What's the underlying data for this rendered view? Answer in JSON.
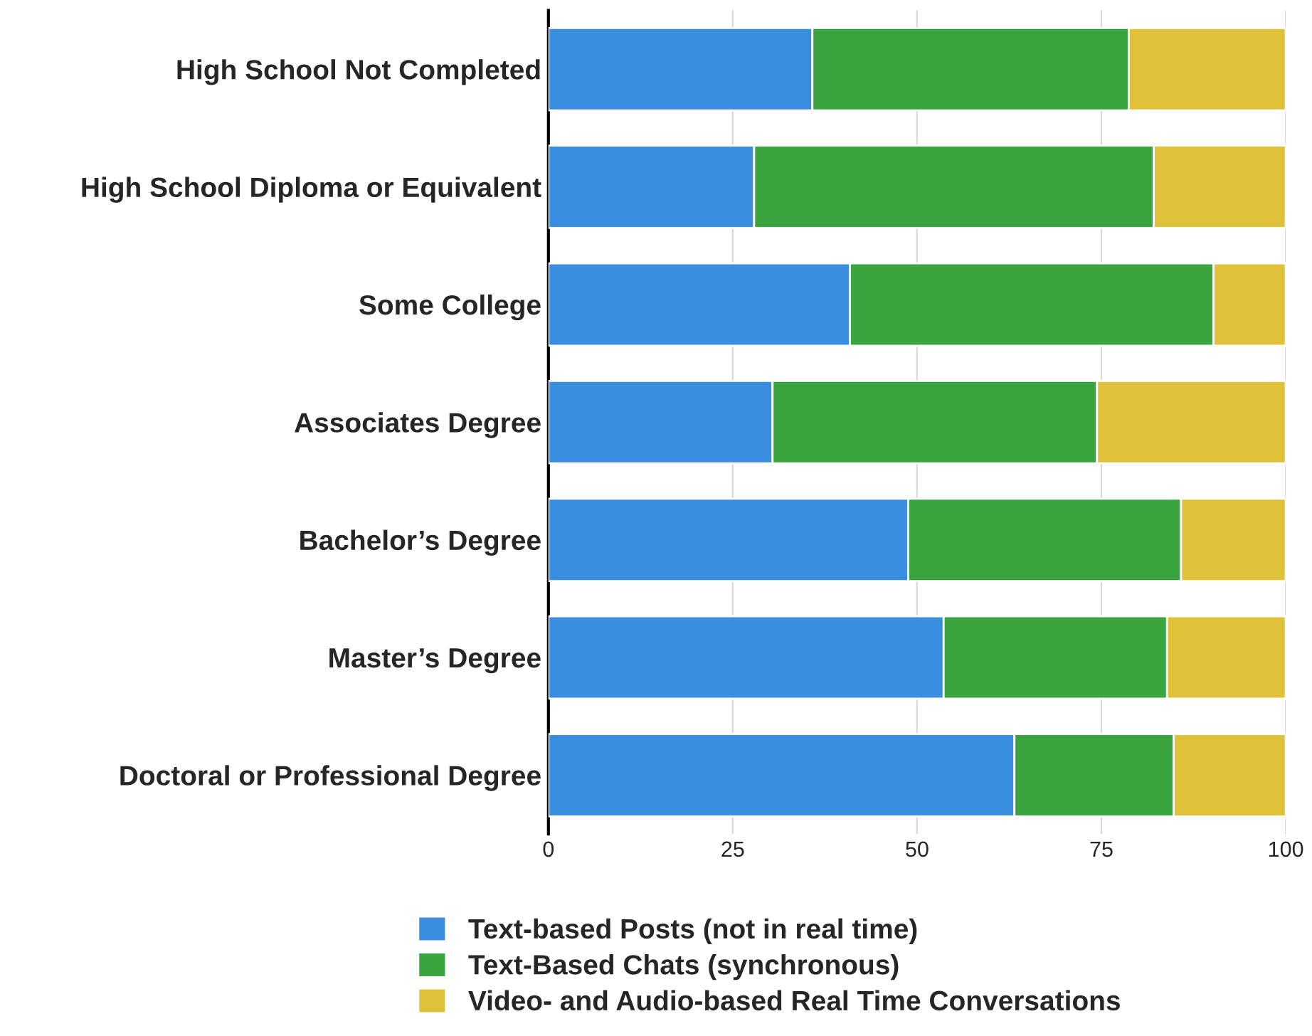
{
  "chart_data": {
    "type": "bar",
    "orientation": "horizontal",
    "stacked": true,
    "categories": [
      "High School Not Completed",
      "High School Diploma or Equivalent",
      "Some College",
      "Associates Degree",
      "Bachelor’s Degree",
      "Master’s Degree",
      "Doctoral or Professional Degree"
    ],
    "series": [
      {
        "name": "Text-based Posts (not in real time)",
        "color": "#3a8ee0",
        "values": [
          35.8,
          27.9,
          40.9,
          30.4,
          48.8,
          53.6,
          63.2
        ]
      },
      {
        "name": "Text-Based Chats (synchronous)",
        "color": "#3aa43e",
        "values": [
          42.9,
          54.2,
          49.3,
          44.0,
          37.0,
          30.3,
          21.6
        ]
      },
      {
        "name": "Video- and Audio-based Real Time Conversations",
        "color": "#e0c23a",
        "values": [
          21.3,
          17.9,
          9.8,
          25.6,
          14.2,
          16.1,
          15.2
        ]
      }
    ],
    "xlim": [
      0,
      100
    ],
    "xticks": [
      0,
      25,
      50,
      75,
      100
    ],
    "grid": "x",
    "legend": "bottom"
  }
}
